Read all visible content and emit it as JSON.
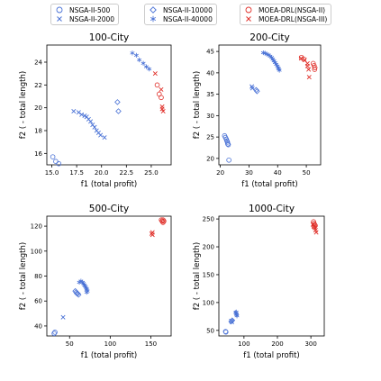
{
  "legend": [
    {
      "label": "NSGA-II-500",
      "marker": "o",
      "color": "#4a72d6"
    },
    {
      "label": "NSGA-II-2000",
      "marker": "x",
      "color": "#4a72d6"
    },
    {
      "label": "NSGA-II-10000",
      "marker": "D",
      "color": "#4a72d6"
    },
    {
      "label": "NSGA-II-40000",
      "marker": "*",
      "color": "#4a72d6"
    },
    {
      "label": "MOEA-DRL(NSGA-II)",
      "marker": "o",
      "color": "#e0302a"
    },
    {
      "label": "MOEA-DRL(NSGA-III)",
      "marker": "x",
      "color": "#e0302a"
    }
  ],
  "chart_data": [
    {
      "type": "scatter",
      "title": "100-City",
      "xlabel": "f1 (total profit)",
      "ylabel": "f2 ( - total length)",
      "xlim": [
        14.5,
        27
      ],
      "ylim": [
        15,
        25.5
      ],
      "xticks": [
        "15.0",
        "17.5",
        "20.0",
        "22.5",
        "25.0"
      ],
      "xtick_values": [
        15,
        17.5,
        20,
        22.5,
        25
      ],
      "yticks": [
        "16",
        "18",
        "20",
        "22",
        "24"
      ],
      "ytick_values": [
        16,
        18,
        20,
        22,
        24
      ],
      "series": [
        {
          "name": "NSGA-II-500",
          "points": [
            [
              15.1,
              15.7
            ],
            [
              15.4,
              15.3
            ],
            [
              15.7,
              15.1
            ]
          ]
        },
        {
          "name": "NSGA-II-2000",
          "points": [
            [
              17.2,
              19.7
            ],
            [
              17.7,
              19.6
            ],
            [
              18.0,
              19.4
            ],
            [
              18.3,
              19.3
            ],
            [
              18.5,
              19.2
            ],
            [
              18.7,
              19.0
            ],
            [
              18.9,
              18.8
            ],
            [
              19.1,
              18.5
            ],
            [
              19.3,
              18.3
            ],
            [
              19.5,
              18.0
            ],
            [
              19.7,
              17.8
            ],
            [
              19.9,
              17.6
            ],
            [
              20.3,
              17.4
            ]
          ]
        },
        {
          "name": "NSGA-II-10000",
          "points": [
            [
              21.6,
              20.5
            ],
            [
              21.7,
              19.7
            ]
          ]
        },
        {
          "name": "NSGA-II-40000",
          "points": [
            [
              23.1,
              24.8
            ],
            [
              23.5,
              24.6
            ],
            [
              23.8,
              24.2
            ],
            [
              24.2,
              23.9
            ],
            [
              24.5,
              23.6
            ],
            [
              24.8,
              23.4
            ]
          ]
        },
        {
          "name": "MOEA-DRL(NSGA-II)",
          "points": [
            [
              25.6,
              22.0
            ],
            [
              25.8,
              21.2
            ],
            [
              26.0,
              20.9
            ]
          ]
        },
        {
          "name": "MOEA-DRL(NSGA-III)",
          "points": [
            [
              25.4,
              23.0
            ],
            [
              26.0,
              21.6
            ],
            [
              26.1,
              20.1
            ],
            [
              26.2,
              19.7
            ],
            [
              26.1,
              19.9
            ]
          ]
        }
      ]
    },
    {
      "type": "scatter",
      "title": "200-City",
      "xlabel": "f1 (total profit)",
      "ylabel": "f2 ( - total length)",
      "xlim": [
        19.5,
        55
      ],
      "ylim": [
        18.5,
        46.5
      ],
      "xticks": [
        "20",
        "30",
        "40",
        "50"
      ],
      "xtick_values": [
        20,
        30,
        40,
        50
      ],
      "yticks": [
        "20",
        "25",
        "30",
        "35",
        "40",
        "45"
      ],
      "ytick_values": [
        20,
        25,
        30,
        35,
        40,
        45
      ],
      "series": [
        {
          "name": "NSGA-II-500",
          "points": [
            [
              21.5,
              25.3
            ],
            [
              21.8,
              24.9
            ],
            [
              22.1,
              24.5
            ],
            [
              22.3,
              24.1
            ],
            [
              22.5,
              23.8
            ],
            [
              22.6,
              23.4
            ],
            [
              22.8,
              23.2
            ],
            [
              23.0,
              19.6
            ]
          ]
        },
        {
          "name": "NSGA-II-2000",
          "points": [
            [
              31.0,
              36.8
            ],
            [
              31.2,
              36.4
            ]
          ]
        },
        {
          "name": "NSGA-II-10000",
          "points": [
            [
              32.5,
              36.0
            ],
            [
              32.8,
              35.7
            ]
          ]
        },
        {
          "name": "NSGA-II-40000",
          "points": [
            [
              35.0,
              44.7
            ],
            [
              35.6,
              44.6
            ],
            [
              36.2,
              44.4
            ],
            [
              36.8,
              44.2
            ],
            [
              37.4,
              43.9
            ],
            [
              37.9,
              43.6
            ],
            [
              38.3,
              43.2
            ],
            [
              38.7,
              42.8
            ],
            [
              39.1,
              42.4
            ],
            [
              39.5,
              42.0
            ],
            [
              39.9,
              41.6
            ],
            [
              40.2,
              41.2
            ],
            [
              40.4,
              40.9
            ],
            [
              40.6,
              40.6
            ]
          ]
        },
        {
          "name": "MOEA-DRL(NSGA-II)",
          "points": [
            [
              48.3,
              43.6
            ],
            [
              49.1,
              43.2
            ],
            [
              52.4,
              42.2
            ],
            [
              52.7,
              41.7
            ],
            [
              53.0,
              41.2
            ],
            [
              52.9,
              40.8
            ]
          ]
        },
        {
          "name": "MOEA-DRL(NSGA-III)",
          "points": [
            [
              48.2,
              43.4
            ],
            [
              49.4,
              43.0
            ],
            [
              50.4,
              42.2
            ],
            [
              50.8,
              40.8
            ],
            [
              51.0,
              39.0
            ],
            [
              50.4,
              41.6
            ]
          ]
        }
      ]
    },
    {
      "type": "scatter",
      "title": "500-City",
      "xlabel": "f1 (total profit)",
      "ylabel": "f2 ( - total length)",
      "xlim": [
        22,
        175
      ],
      "ylim": [
        32,
        128
      ],
      "xticks": [
        "50",
        "100",
        "150"
      ],
      "xtick_values": [
        50,
        100,
        150
      ],
      "yticks": [
        "40",
        "60",
        "80",
        "100",
        "120"
      ],
      "ytick_values": [
        40,
        60,
        80,
        100,
        120
      ],
      "series": [
        {
          "name": "NSGA-II-500",
          "points": [
            [
              32,
              35
            ],
            [
              31,
              34
            ]
          ]
        },
        {
          "name": "NSGA-II-2000",
          "points": [
            [
              42,
              47
            ]
          ]
        },
        {
          "name": "NSGA-II-10000",
          "points": [
            [
              57,
              68
            ],
            [
              58,
              67
            ],
            [
              59,
              66
            ],
            [
              60,
              66
            ],
            [
              61,
              65
            ]
          ]
        },
        {
          "name": "NSGA-II-40000",
          "points": [
            [
              62,
              75
            ],
            [
              64,
              76
            ],
            [
              66,
              75
            ],
            [
              67,
              74
            ],
            [
              68,
              73
            ],
            [
              69,
              72
            ],
            [
              70,
              71
            ],
            [
              71,
              70
            ],
            [
              71,
              69
            ],
            [
              72,
              68
            ],
            [
              71,
              67
            ]
          ]
        },
        {
          "name": "MOEA-DRL(NSGA-II)",
          "points": [
            [
              163,
              125
            ],
            [
              164,
              124
            ],
            [
              165,
              123
            ],
            [
              166,
              124
            ],
            [
              165,
              125
            ]
          ]
        },
        {
          "name": "MOEA-DRL(NSGA-III)",
          "points": [
            [
              151,
              114
            ],
            [
              152,
              113
            ],
            [
              152,
              115
            ]
          ]
        }
      ]
    },
    {
      "type": "scatter",
      "title": "1000-City",
      "xlabel": "f1 (total profit)",
      "ylabel": "f2 ( - total length)",
      "xlim": [
        25,
        340
      ],
      "ylim": [
        40,
        255
      ],
      "xticks": [
        "100",
        "200",
        "300"
      ],
      "xtick_values": [
        100,
        200,
        300
      ],
      "yticks": [
        "50",
        "100",
        "150",
        "200",
        "250"
      ],
      "ytick_values": [
        50,
        100,
        150,
        200,
        250
      ],
      "series": [
        {
          "name": "NSGA-II-500",
          "points": [
            [
              45,
              48
            ],
            [
              46,
              47
            ]
          ]
        },
        {
          "name": "NSGA-II-2000",
          "points": [
            [
              62,
              67
            ],
            [
              64,
              65
            ]
          ]
        },
        {
          "name": "NSGA-II-10000",
          "points": [
            [
              62,
              66
            ],
            [
              65,
              68
            ]
          ]
        },
        {
          "name": "NSGA-II-40000",
          "points": [
            [
              75,
              82
            ],
            [
              77,
              80
            ],
            [
              78,
              78
            ],
            [
              79,
              76
            ],
            [
              77,
              83
            ]
          ]
        },
        {
          "name": "MOEA-DRL(NSGA-II)",
          "points": [
            [
              308,
              245
            ],
            [
              309,
              242
            ],
            [
              311,
              240
            ],
            [
              313,
              238
            ],
            [
              310,
              236
            ]
          ]
        },
        {
          "name": "MOEA-DRL(NSGA-III)",
          "points": [
            [
              306,
              240
            ],
            [
              309,
              236
            ],
            [
              312,
              234
            ],
            [
              314,
              230
            ],
            [
              316,
              226
            ]
          ]
        }
      ]
    }
  ]
}
